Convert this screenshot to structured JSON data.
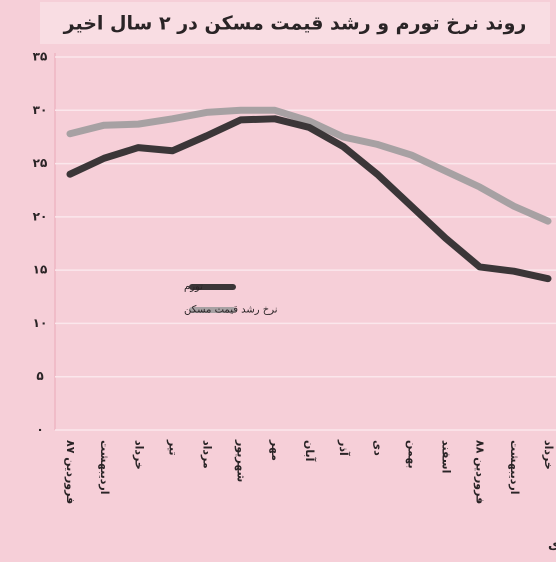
{
  "chart_data": {
    "type": "line",
    "title": "روند نرخ تورم و رشد قیمت مسکن در ۲ سال اخیر",
    "source": "استخراج: ماهنامه «اقتصاد ایران» از آمارهای بانک مرکزی",
    "categories": [
      "فروردین ۸۷",
      "اردیبهشت",
      "خرداد",
      "تیر",
      "مرداد",
      "شهریور",
      "مهر",
      "آبان",
      "آذر",
      "دی",
      "بهمن",
      "اسفند",
      "فروردین ۸۸",
      "اردیبهشت",
      "خرداد"
    ],
    "series": [
      {
        "name": "تورم",
        "color": "#3b3638",
        "values": [
          24.0,
          25.5,
          26.5,
          26.2,
          27.6,
          29.1,
          29.2,
          28.4,
          26.6,
          24.0,
          21.0,
          18.0,
          15.3,
          14.9,
          14.2
        ]
      },
      {
        "name": "نرخ رشد قیمت مسکن",
        "color": "#a7a1a3",
        "values": [
          27.8,
          28.6,
          28.7,
          29.2,
          29.8,
          30.0,
          30.0,
          29.0,
          27.5,
          26.8,
          25.8,
          24.3,
          22.8,
          21.0,
          19.6
        ]
      }
    ],
    "ylim": [
      0,
      35
    ],
    "yticks": [
      {
        "value": 0,
        "label": "۰"
      },
      {
        "value": 5,
        "label": "۵"
      },
      {
        "value": 10,
        "label": "۱۰"
      },
      {
        "value": 15,
        "label": "۱۵"
      },
      {
        "value": 20,
        "label": "۲۰"
      },
      {
        "value": 25,
        "label": "۲۵"
      },
      {
        "value": 30,
        "label": "۳۰"
      },
      {
        "value": 35,
        "label": "۳۵"
      }
    ],
    "grid": true
  }
}
